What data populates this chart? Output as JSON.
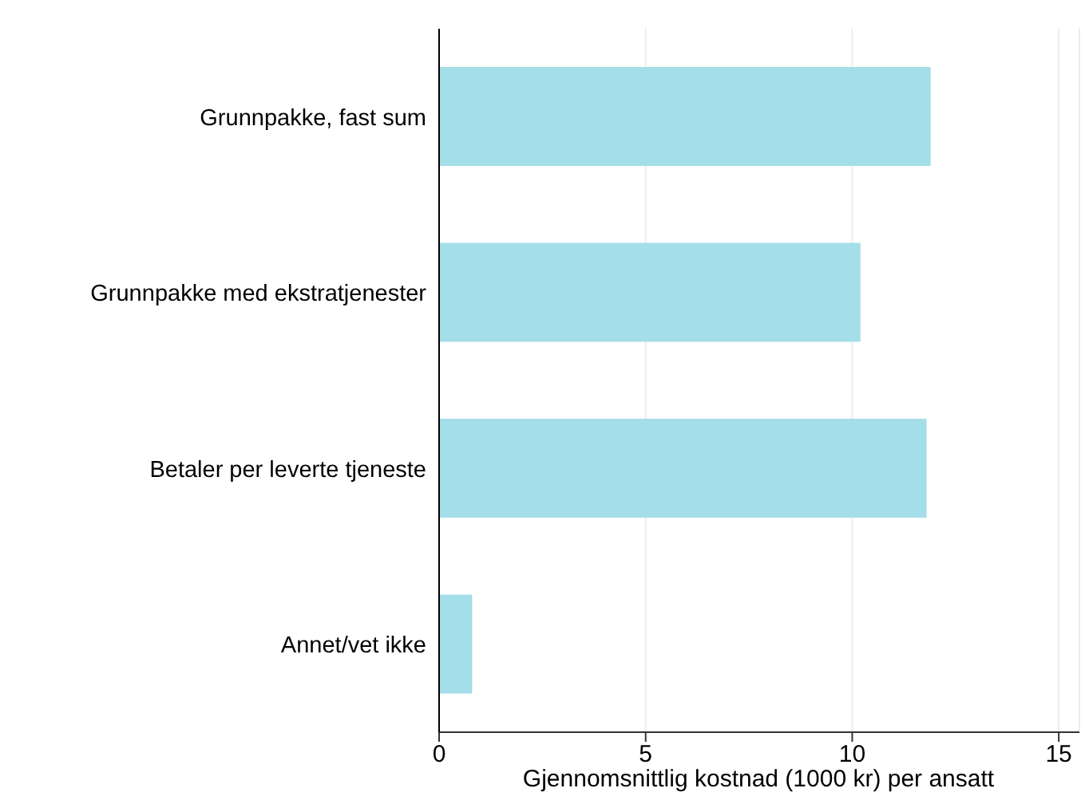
{
  "chart_data": {
    "type": "bar",
    "orientation": "horizontal",
    "xlabel": "Gjennomsnittlig kostnad (1000 kr) per ansatt",
    "categories": [
      "Grunnpakke, fast sum",
      "Grunnpakke med ekstratjenester",
      "Betaler per leverte tjeneste",
      "Annet/vet ikke"
    ],
    "values": [
      11.9,
      10.2,
      11.8,
      0.8
    ],
    "color": "#a4dee8",
    "xlim": [
      0,
      15.5
    ],
    "xticks": [
      0,
      5,
      10,
      15
    ],
    "grid": "x"
  }
}
